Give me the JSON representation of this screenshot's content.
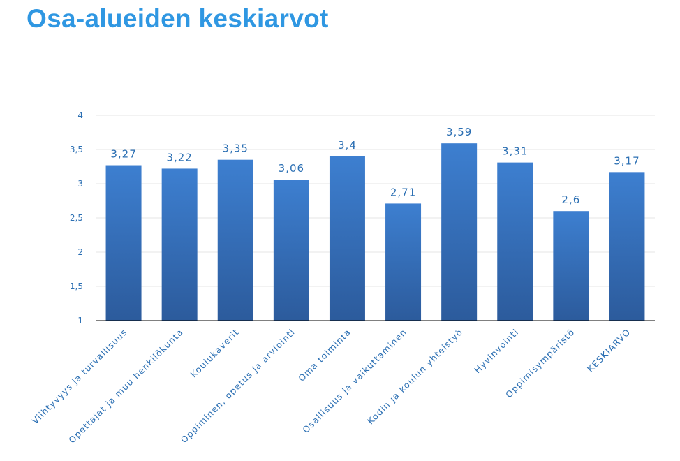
{
  "title": "Osa-alueiden keskiarvot",
  "colors": {
    "title": "#2f97e2",
    "bar_top": "#3d7fd0",
    "bar_bottom": "#2c5b9c",
    "label": "#2b6fb3",
    "grid": "#e6e6e6",
    "axis": "#000000"
  },
  "chart_data": {
    "type": "bar",
    "title": "",
    "xlabel": "",
    "ylabel": "",
    "ylim": [
      1,
      4
    ],
    "yticks": [
      1,
      1.5,
      2,
      2.5,
      3,
      3.5,
      4
    ],
    "ytick_labels": [
      "1",
      "1,5",
      "2",
      "2,5",
      "3",
      "3,5",
      "4"
    ],
    "grid": true,
    "categories": [
      "Viihtyvyys ja turvallisuus",
      "Opettajat ja muu henkilökunta",
      "Koulukaverit",
      "Oppiminen, opetus ja arviointi",
      "Oma toiminta",
      "Osallisuus ja vaikuttaminen",
      "Kodin ja koulun yhteistyö",
      "Hyvinvointi",
      "Oppimisympäristö",
      "KESKIARVO"
    ],
    "values": [
      3.27,
      3.22,
      3.35,
      3.06,
      3.4,
      2.71,
      3.59,
      3.31,
      2.6,
      3.17
    ],
    "value_labels": [
      "3,27",
      "3,22",
      "3,35",
      "3,06",
      "3,4",
      "2,71",
      "3,59",
      "3,31",
      "2,6",
      "3,17"
    ]
  }
}
